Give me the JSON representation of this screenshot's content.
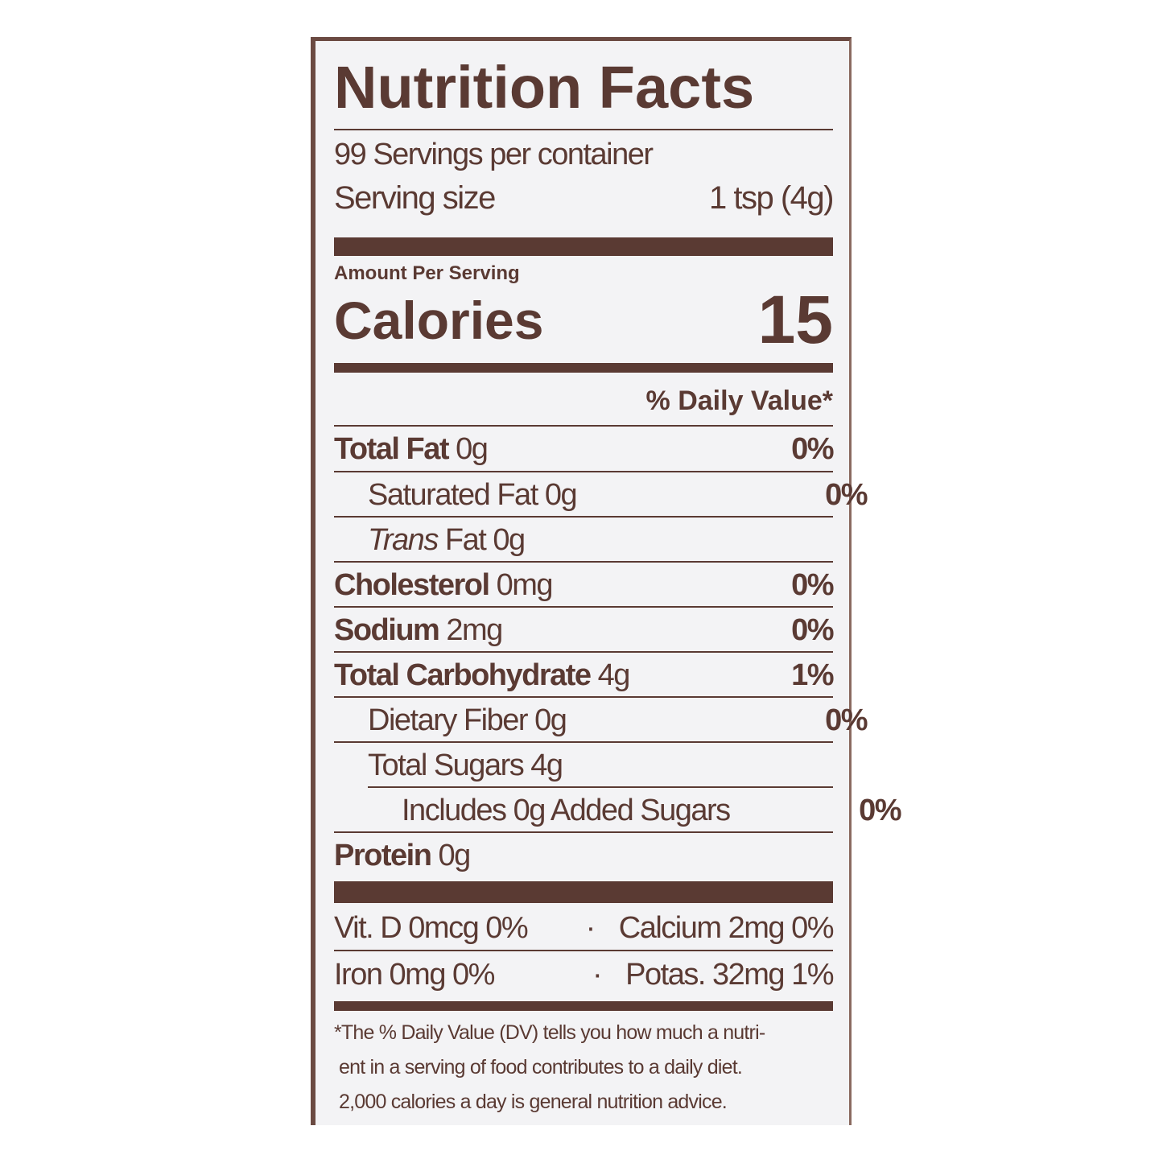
{
  "label": {
    "title": "Nutrition Facts",
    "servings_per_container": "99 Servings per container",
    "serving_size_label": "Serving size",
    "serving_size_value": "1 tsp (4g)",
    "amount_per_serving": "Amount Per Serving",
    "calories_label": "Calories",
    "calories_value": "15",
    "daily_value_header": "% Daily Value*",
    "nutrients": [
      {
        "name": "Total Fat",
        "amount": "0g",
        "dv": "0%",
        "bold": true,
        "indent": 0
      },
      {
        "name": "Saturated Fat",
        "amount": "0g",
        "dv": "0%",
        "bold": false,
        "indent": 1
      },
      {
        "name": "Trans",
        "name_suffix": "Fat",
        "amount": "0g",
        "dv": "",
        "bold": false,
        "indent": 1
      },
      {
        "name": "Cholesterol",
        "amount": "0mg",
        "dv": "0%",
        "bold": true,
        "indent": 0
      },
      {
        "name": "Sodium",
        "amount": "2mg",
        "dv": "0%",
        "bold": true,
        "indent": 0
      },
      {
        "name": "Total Carbohydrate",
        "amount": "4g",
        "dv": "1%",
        "bold": true,
        "indent": 0
      },
      {
        "name": "Dietary Fiber",
        "amount": "0g",
        "dv": "0%",
        "bold": false,
        "indent": 1
      },
      {
        "name": "Total Sugars",
        "amount": "4g",
        "dv": "",
        "bold": false,
        "indent": 1
      },
      {
        "name": "Includes 0g Added Sugars",
        "amount": "",
        "dv": "0%",
        "bold": false,
        "indent": 2
      },
      {
        "name": "Protein",
        "amount": "0g",
        "dv": "",
        "bold": true,
        "indent": 0
      }
    ],
    "vitamins": [
      {
        "left": "Vit. D 0mcg 0%",
        "right": "Calcium 2mg 0%"
      },
      {
        "left": "Iron 0mg 0%",
        "right": "Potas. 32mg 1%"
      }
    ],
    "separator": "·",
    "footnote": [
      "*The % Daily Value (DV) tells you how much a nutri-",
      "ent in a serving of food contributes to a daily diet.",
      "2,000 calories a day is general nutrition advice."
    ],
    "ink_color": "#5a3a33"
  }
}
